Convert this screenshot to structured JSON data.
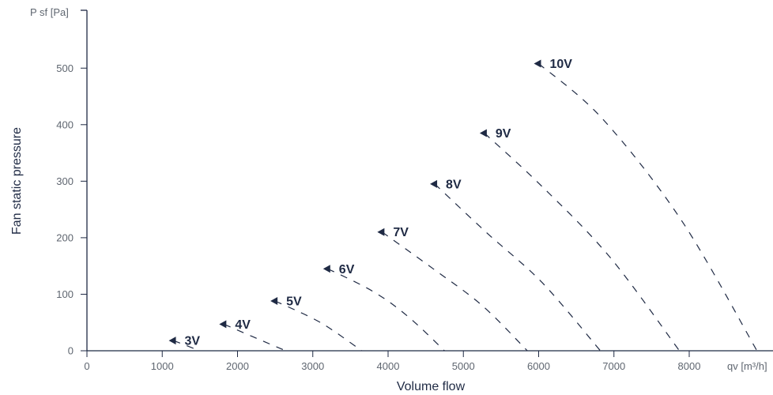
{
  "chart_data": {
    "type": "line",
    "xlabel": "Volume flow",
    "ylabel": "Fan static pressure",
    "x_unit_label": "qv [m³/h]",
    "y_unit_label": "P sf [Pa]",
    "xlim": [
      0,
      9200
    ],
    "ylim": [
      0,
      600
    ],
    "x_ticks": [
      0,
      1000,
      2000,
      3000,
      4000,
      5000,
      6000,
      7000,
      8000
    ],
    "y_ticks": [
      0,
      100,
      200,
      300,
      400,
      500
    ],
    "grid": false,
    "line_color": "#1f2a44",
    "series": [
      {
        "name": "3V",
        "x": [
          1150,
          1500
        ],
        "y": [
          18,
          0
        ]
      },
      {
        "name": "4V",
        "x": [
          1820,
          2200,
          2640
        ],
        "y": [
          47,
          25,
          0
        ]
      },
      {
        "name": "5V",
        "x": [
          2500,
          3100,
          3650
        ],
        "y": [
          88,
          50,
          0
        ]
      },
      {
        "name": "6V",
        "x": [
          3200,
          3800,
          4270,
          4750
        ],
        "y": [
          145,
          105,
          60,
          0
        ]
      },
      {
        "name": "7V",
        "x": [
          3920,
          4600,
          5250,
          5850
        ],
        "y": [
          210,
          145,
          80,
          0
        ]
      },
      {
        "name": "8V",
        "x": [
          4620,
          5300,
          6050,
          6820
        ],
        "y": [
          295,
          210,
          120,
          0
        ]
      },
      {
        "name": "9V",
        "x": [
          5280,
          6050,
          6950,
          7870
        ],
        "y": [
          385,
          290,
          165,
          0
        ]
      },
      {
        "name": "10V",
        "x": [
          6000,
          6850,
          7900,
          8900
        ],
        "y": [
          508,
          410,
          230,
          0
        ]
      }
    ]
  }
}
